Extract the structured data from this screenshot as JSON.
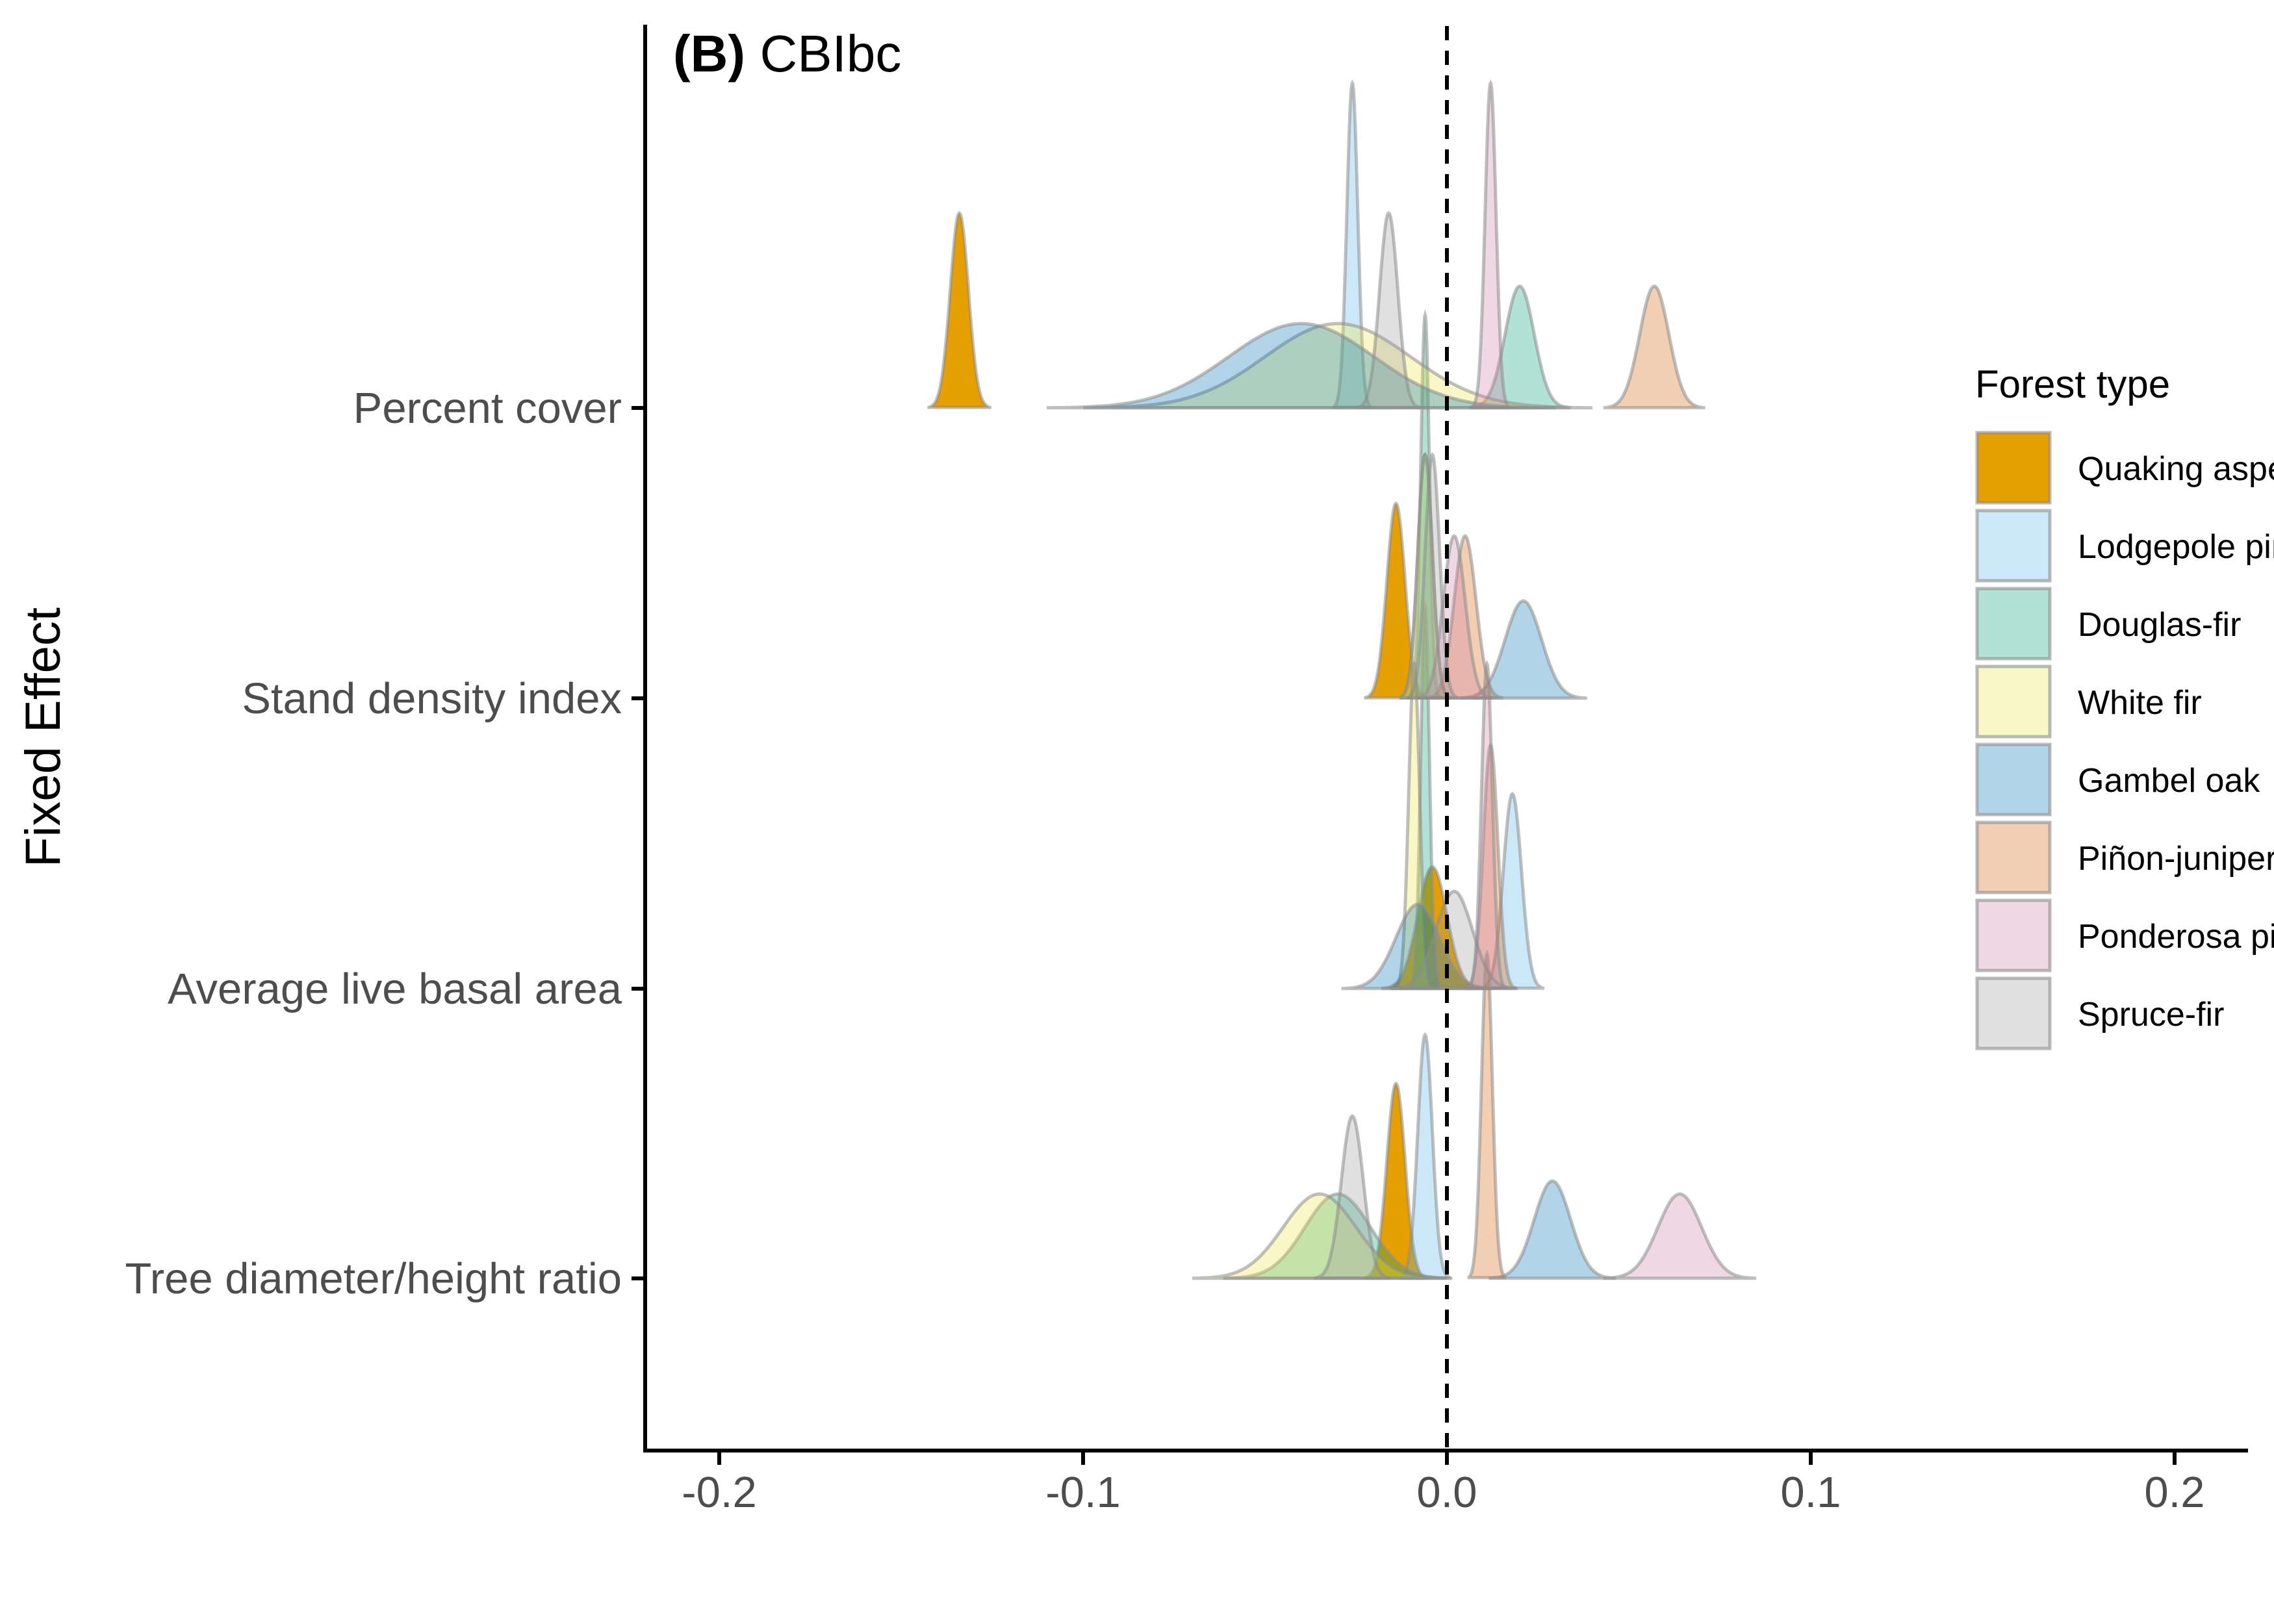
{
  "chart_data": {
    "type": "ridgeline-density",
    "panel_letter": "(B)",
    "panel_name": "CBIbc",
    "xlabel": "",
    "ylabel": "Fixed Effect",
    "xlim": [
      -0.22,
      0.22
    ],
    "x_ticks": [
      -0.2,
      -0.1,
      0.0,
      0.1,
      0.2
    ],
    "x_tick_labels": [
      "-0.2",
      "-0.1",
      "0.0",
      "0.1",
      "0.2"
    ],
    "reference_line_x": 0,
    "grid": false,
    "legend_position": "right",
    "legend_title": "Forest type",
    "categories": [
      "Percent cover",
      "Stand density index",
      "Average live basal area",
      "Tree diameter/height ratio"
    ],
    "series": [
      {
        "name": "Quaking aspen",
        "color": "#E69F00",
        "opacity": 1.0,
        "values": [
          {
            "mean": -0.134,
            "sd": 0.0025
          },
          {
            "mean": -0.014,
            "sd": 0.0025
          },
          {
            "mean": -0.004,
            "sd": 0.004
          },
          {
            "mean": -0.014,
            "sd": 0.0025
          }
        ]
      },
      {
        "name": "Lodgepole pine",
        "color": "#56B4E9",
        "opacity": 0.3,
        "values": [
          {
            "mean": -0.026,
            "sd": 0.0015
          },
          {
            "mean": -0.006,
            "sd": 0.002
          },
          {
            "mean": 0.018,
            "sd": 0.0025
          },
          {
            "mean": -0.006,
            "sd": 0.002
          }
        ]
      },
      {
        "name": "Douglas-fir",
        "color": "#009E73",
        "opacity": 0.3,
        "values": [
          {
            "mean": 0.02,
            "sd": 0.004
          },
          {
            "mean": -0.006,
            "sd": 0.0012
          },
          {
            "mean": -0.006,
            "sd": 0.0012
          },
          {
            "mean": -0.03,
            "sd": 0.009
          }
        ]
      },
      {
        "name": "White fir",
        "color": "#F0E442",
        "opacity": 0.3,
        "values": [
          {
            "mean": -0.03,
            "sd": 0.02
          },
          {
            "mean": -0.006,
            "sd": 0.002
          },
          {
            "mean": -0.009,
            "sd": 0.0015
          },
          {
            "mean": -0.035,
            "sd": 0.01
          }
        ]
      },
      {
        "name": "Gambel oak",
        "color": "#0072B2",
        "opacity": 0.3,
        "values": [
          {
            "mean": -0.04,
            "sd": 0.02
          },
          {
            "mean": 0.021,
            "sd": 0.005
          },
          {
            "mean": -0.008,
            "sd": 0.006
          },
          {
            "mean": 0.029,
            "sd": 0.005
          }
        ]
      },
      {
        "name": "Piñon-juniper",
        "color": "#D55E00",
        "opacity": 0.3,
        "values": [
          {
            "mean": 0.057,
            "sd": 0.004
          },
          {
            "mean": 0.005,
            "sd": 0.003
          },
          {
            "mean": 0.012,
            "sd": 0.002
          },
          {
            "mean": 0.011,
            "sd": 0.0015
          }
        ]
      },
      {
        "name": "Ponderosa pine",
        "color": "#CC79A7",
        "opacity": 0.3,
        "values": [
          {
            "mean": 0.012,
            "sd": 0.0015
          },
          {
            "mean": 0.002,
            "sd": 0.003
          },
          {
            "mean": 0.011,
            "sd": 0.0015
          },
          {
            "mean": 0.064,
            "sd": 0.006
          }
        ]
      },
      {
        "name": "Spruce-fir",
        "color": "#999999",
        "opacity": 0.3,
        "values": [
          {
            "mean": -0.016,
            "sd": 0.0025
          },
          {
            "mean": -0.004,
            "sd": 0.002
          },
          {
            "mean": 0.002,
            "sd": 0.005
          },
          {
            "mean": -0.026,
            "sd": 0.003
          }
        ]
      }
    ]
  }
}
